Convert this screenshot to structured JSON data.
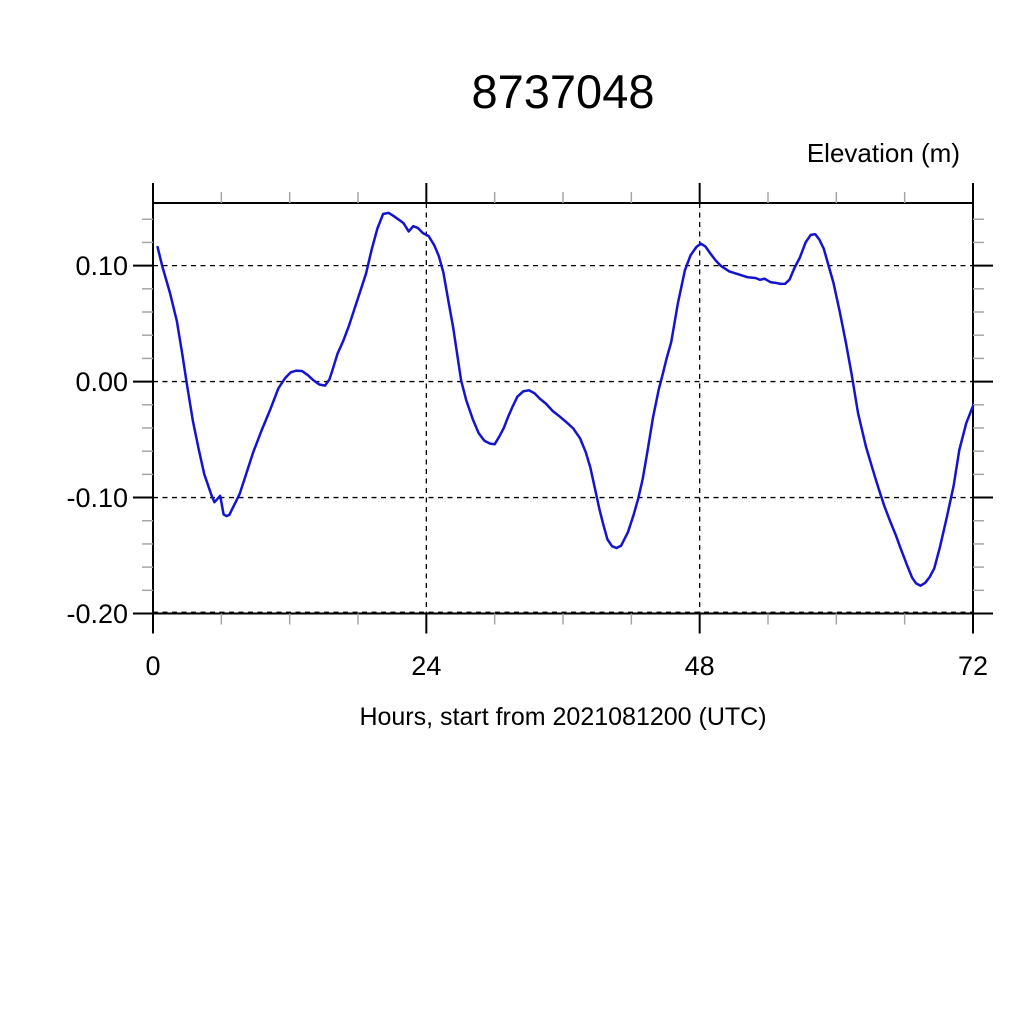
{
  "page": {
    "background_color": "#ffffff"
  },
  "chart_data": {
    "type": "line",
    "title": "8737048",
    "xlabel": "Hours, start from 2021081200 (UTC)",
    "ylabel": "Elevation (m)",
    "xlim": [
      0,
      72
    ],
    "ylim": [
      -0.2,
      0.154
    ],
    "x_major_ticks": [
      0,
      24,
      48,
      72
    ],
    "x_tick_labels": [
      "0",
      "24",
      "48",
      "72"
    ],
    "x_minor_step": 6,
    "y_major_ticks": [
      0.1,
      0.0,
      -0.1,
      -0.2
    ],
    "y_tick_labels": [
      "0.10",
      "0.00",
      "-0.10",
      "-0.20"
    ],
    "y_minor_step": 0.02,
    "grid": "dashed black gridlines at x=24,48 and y=0.10,0.00,-0.10,-0.20; ticks outside on all four sides",
    "legend": "none",
    "line_color": "#1414cf",
    "frame_color": "#000000",
    "minor_tick_color": "#a6a6a6",
    "series": [
      {
        "name": "elevation",
        "x": [
          0.4,
          0.8,
          1.5,
          2.1,
          2.6,
          3.0,
          3.5,
          4.0,
          4.5,
          5.15,
          5.4,
          5.9,
          6.2,
          6.45,
          6.7,
          7.05,
          7.6,
          8.2,
          8.8,
          9.5,
          10.3,
          11.0,
          11.6,
          12.1,
          12.6,
          13.1,
          13.6,
          14.1,
          14.6,
          15.1,
          15.5,
          15.8,
          16.2,
          16.7,
          17.2,
          17.7,
          18.2,
          18.7,
          19.2,
          19.7,
          20.2,
          20.7,
          21.1,
          21.6,
          22.0,
          22.45,
          22.85,
          23.25,
          23.7,
          24.2,
          24.7,
          25.1,
          25.5,
          25.95,
          26.35,
          26.7,
          27.05,
          27.5,
          28.1,
          28.6,
          29.1,
          29.6,
          30.0,
          30.4,
          30.8,
          31.2,
          31.6,
          32.0,
          32.5,
          33.0,
          33.5,
          34.0,
          34.5,
          35.1,
          35.7,
          36.3,
          36.9,
          37.5,
          38.0,
          38.4,
          38.8,
          39.2,
          39.5,
          39.9,
          40.3,
          40.7,
          41.1,
          41.7,
          42.2,
          42.6,
          43.0,
          43.4,
          43.9,
          44.4,
          44.8,
          45.1,
          45.5,
          46.1,
          46.7,
          47.2,
          47.7,
          48.1,
          48.5,
          48.9,
          49.4,
          49.9,
          50.6,
          51.4,
          52.2,
          52.9,
          53.3,
          53.7,
          54.2,
          54.6,
          55.1,
          55.5,
          55.9,
          56.3,
          56.8,
          57.3,
          57.75,
          58.15,
          58.5,
          58.9,
          59.3,
          59.75,
          60.3,
          60.85,
          61.35,
          61.9,
          62.6,
          63.2,
          63.7,
          64.2,
          64.75,
          65.2,
          65.65,
          66.2,
          66.65,
          67.0,
          67.4,
          67.8,
          68.2,
          68.6,
          69.1,
          69.7,
          70.3,
          70.8,
          71.4,
          72.0
        ],
        "y": [
          0.116,
          0.1,
          0.076,
          0.052,
          0.022,
          -0.004,
          -0.034,
          -0.058,
          -0.08,
          -0.0985,
          -0.104,
          -0.0985,
          -0.1145,
          -0.116,
          -0.115,
          -0.108,
          -0.097,
          -0.079,
          -0.061,
          -0.043,
          -0.024,
          -0.006,
          0.003,
          0.008,
          0.0095,
          0.009,
          0.0055,
          0.001,
          -0.0025,
          -0.0035,
          0.002,
          0.011,
          0.024,
          0.035,
          0.048,
          0.063,
          0.078,
          0.093,
          0.114,
          0.132,
          0.1445,
          0.1455,
          0.143,
          0.1395,
          0.1365,
          0.1295,
          0.134,
          0.1325,
          0.128,
          0.1255,
          0.1175,
          0.108,
          0.094,
          0.069,
          0.047,
          0.024,
          0.001,
          -0.016,
          -0.033,
          -0.0445,
          -0.051,
          -0.0535,
          -0.054,
          -0.0475,
          -0.04,
          -0.03,
          -0.021,
          -0.013,
          -0.0085,
          -0.0075,
          -0.01,
          -0.015,
          -0.019,
          -0.0255,
          -0.03,
          -0.035,
          -0.0405,
          -0.049,
          -0.061,
          -0.074,
          -0.092,
          -0.11,
          -0.122,
          -0.136,
          -0.142,
          -0.1435,
          -0.1415,
          -0.13,
          -0.115,
          -0.101,
          -0.084,
          -0.061,
          -0.031,
          -0.007,
          0.008,
          0.02,
          0.034,
          0.068,
          0.096,
          0.109,
          0.116,
          0.119,
          0.1165,
          0.111,
          0.1045,
          0.0995,
          0.095,
          0.0925,
          0.09,
          0.0893,
          0.0878,
          0.0887,
          0.0858,
          0.0853,
          0.0842,
          0.0843,
          0.088,
          0.0975,
          0.107,
          0.12,
          0.1265,
          0.127,
          0.1225,
          0.1145,
          0.1005,
          0.085,
          0.06,
          0.033,
          0.006,
          -0.027,
          -0.056,
          -0.076,
          -0.092,
          -0.107,
          -0.121,
          -0.132,
          -0.144,
          -0.158,
          -0.169,
          -0.174,
          -0.176,
          -0.1735,
          -0.1685,
          -0.161,
          -0.1425,
          -0.117,
          -0.09,
          -0.059,
          -0.036,
          -0.021
        ]
      }
    ]
  }
}
